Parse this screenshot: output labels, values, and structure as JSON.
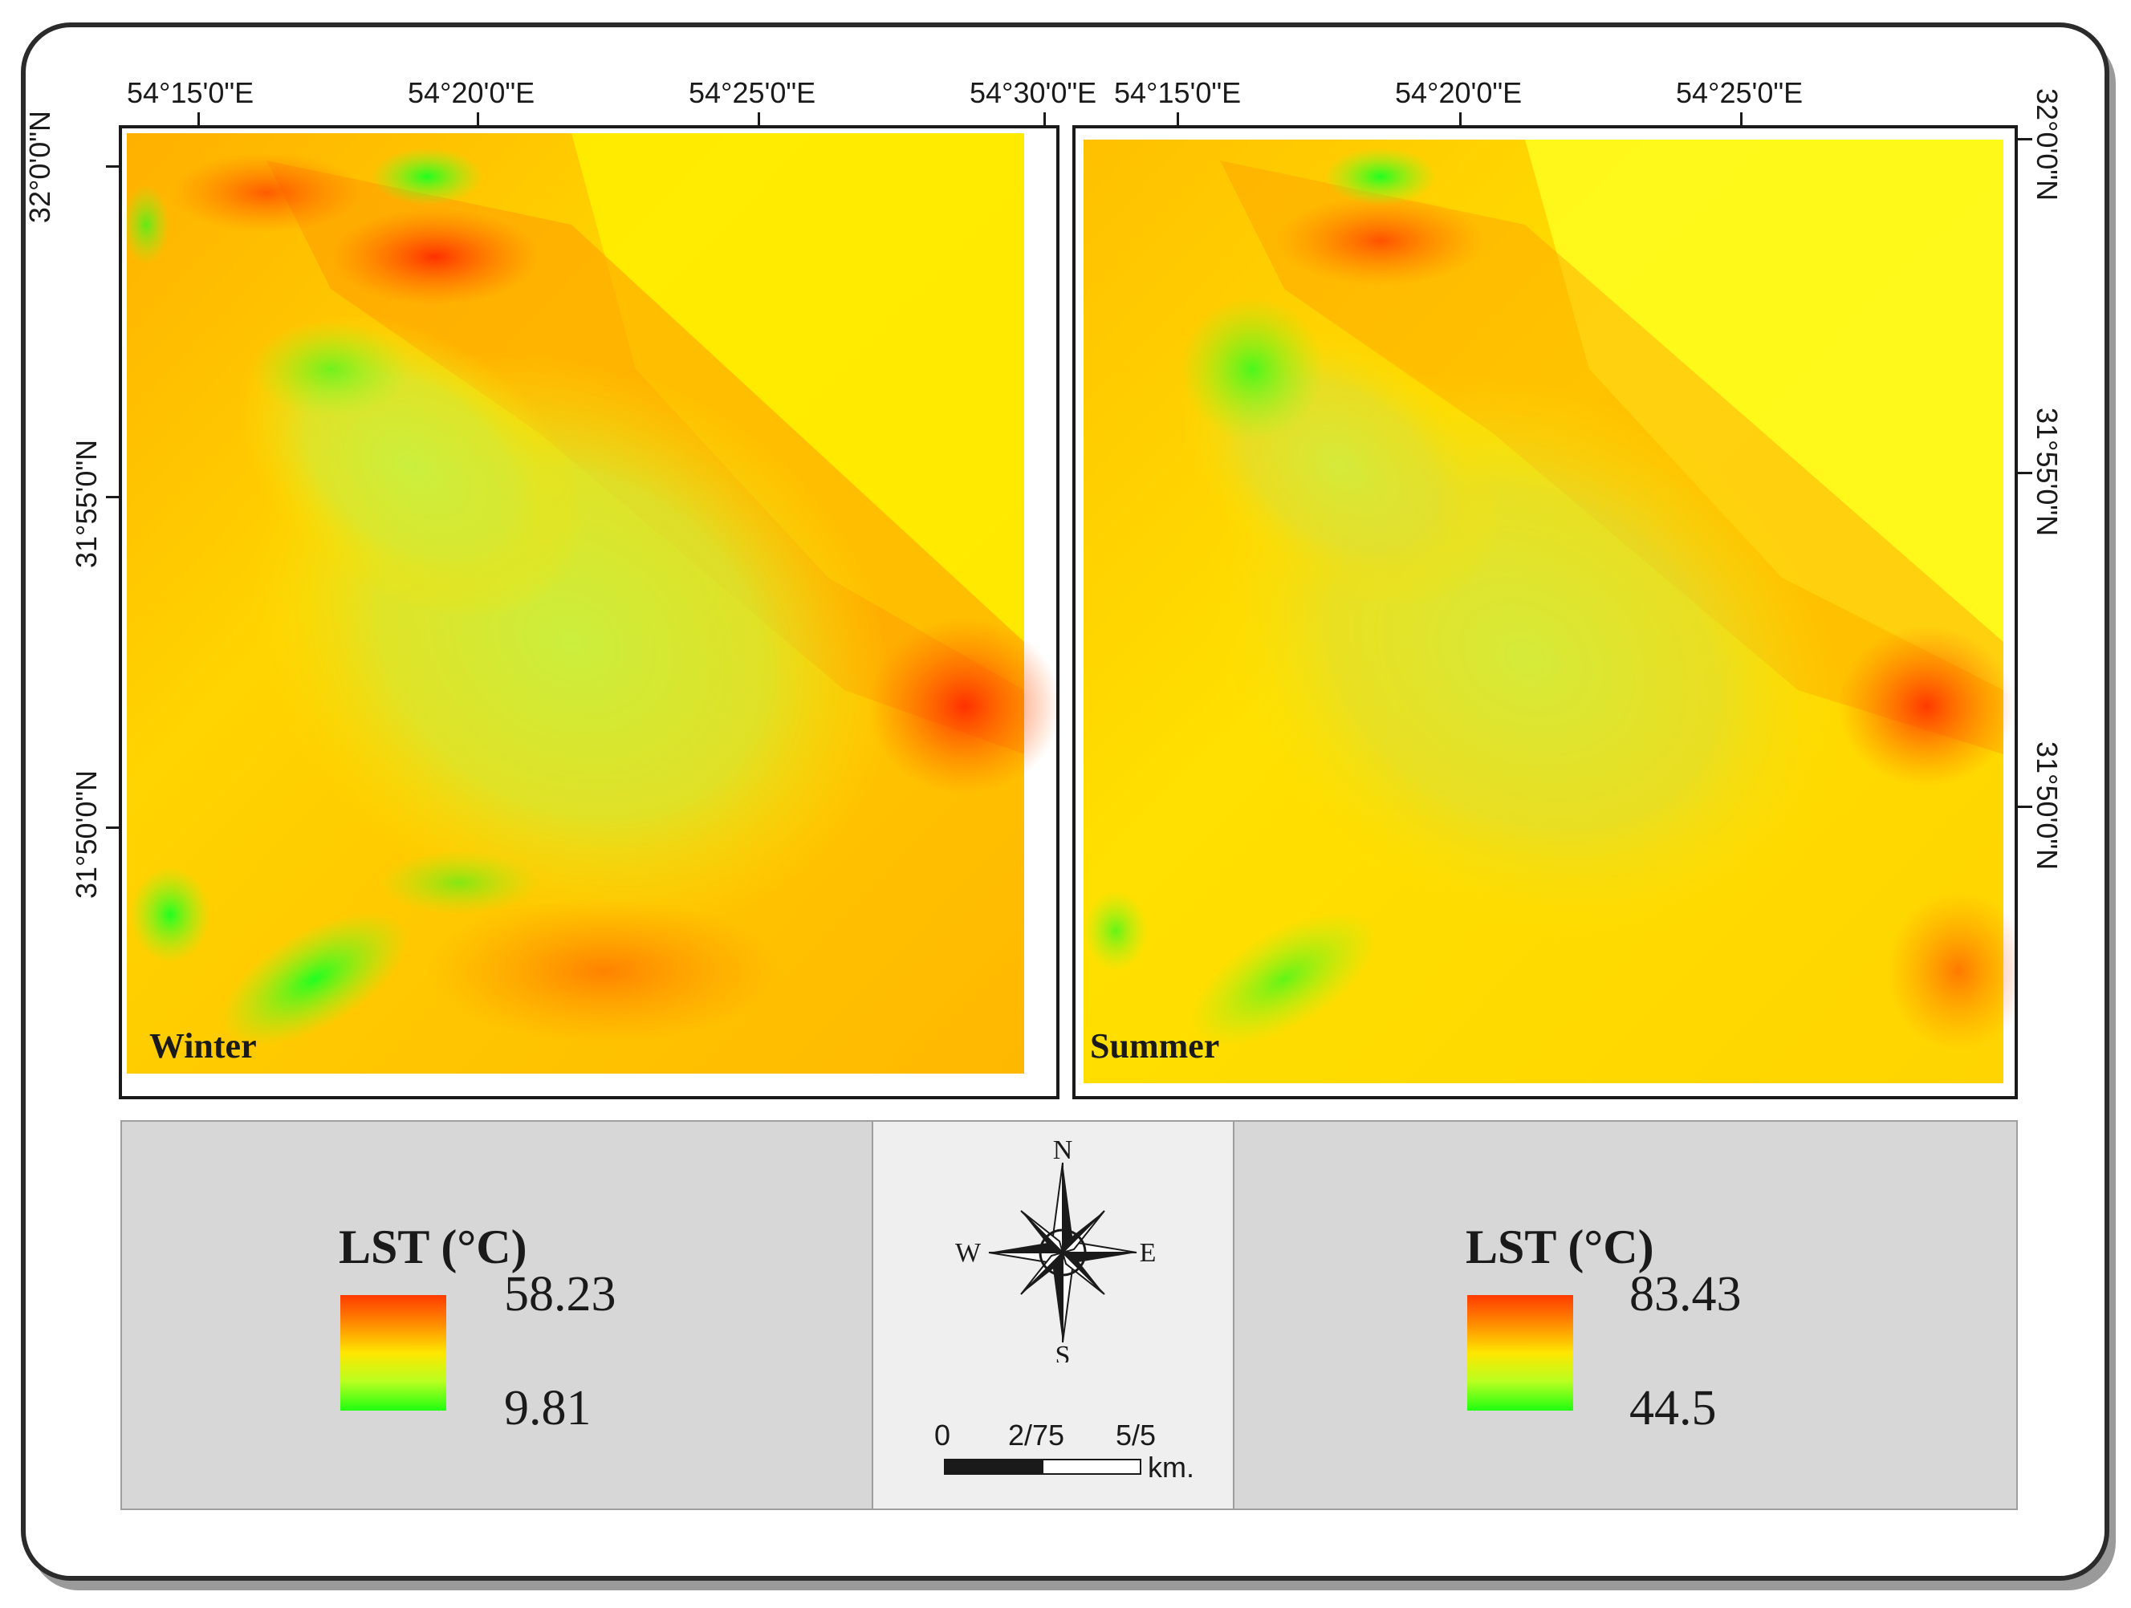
{
  "maps": [
    {
      "label": "Winter"
    },
    {
      "label": "Summer"
    }
  ],
  "longitude_labels": {
    "left_map": [
      "54°15'0\"E",
      "54°20'0\"E",
      "54°25'0\"E",
      "54°30'0\"E"
    ],
    "right_map": [
      "54°15'0\"E",
      "54°20'0\"E",
      "54°25'0\"E"
    ]
  },
  "latitude_labels": {
    "left_map": [
      "32°0'0\"N",
      "31°55'0\"N",
      "31°50'0\"N"
    ],
    "right_map": [
      "32°0'0\"N",
      "31°55'0\"N",
      "31°50'0\"N"
    ]
  },
  "legends": [
    {
      "title": "LST (°C)",
      "max": "58.23",
      "min": "9.81"
    },
    {
      "title": "LST (°C)",
      "max": "83.43",
      "min": "44.5"
    }
  ],
  "colors": {
    "high": "#ff3a00",
    "mid": "#ffe600",
    "low": "#20ff10"
  },
  "compass": {
    "n": "N",
    "s": "S",
    "e": "E",
    "w": "W"
  },
  "scale_bar": {
    "ticks": [
      "0",
      "2/75",
      "5/5"
    ],
    "unit": "km."
  }
}
